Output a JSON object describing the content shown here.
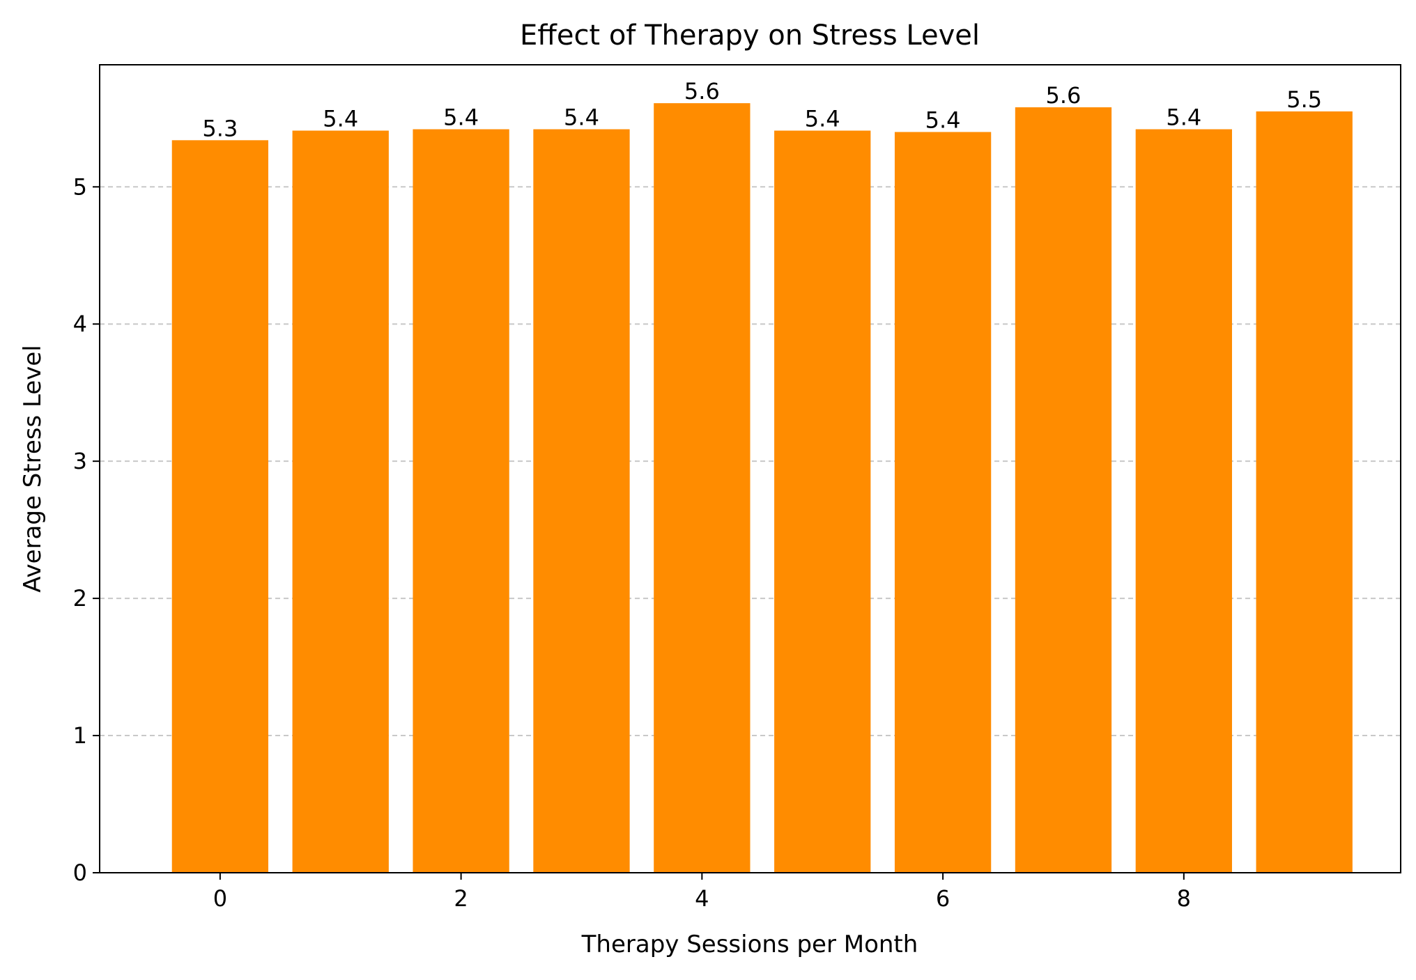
{
  "chart_data": {
    "type": "bar",
    "title": "Effect of Therapy on Stress Level",
    "xlabel": "Therapy Sessions per Month",
    "ylabel": "Average Stress Level",
    "x": [
      0,
      1,
      2,
      3,
      4,
      5,
      6,
      7,
      8,
      9
    ],
    "values": [
      5.34,
      5.41,
      5.42,
      5.42,
      5.61,
      5.41,
      5.4,
      5.58,
      5.42,
      5.55
    ],
    "data_labels": [
      "5.3",
      "5.4",
      "5.4",
      "5.4",
      "5.6",
      "5.4",
      "5.4",
      "5.6",
      "5.4",
      "5.5"
    ],
    "xlim": [
      -1.0,
      9.8
    ],
    "ylim": [
      0,
      5.89
    ],
    "x_ticks": [
      0,
      2,
      4,
      6,
      8
    ],
    "x_tick_labels": [
      "0",
      "2",
      "4",
      "6",
      "8"
    ],
    "y_ticks": [
      0,
      1,
      2,
      3,
      4,
      5
    ],
    "y_tick_labels": [
      "0",
      "1",
      "2",
      "3",
      "4",
      "5"
    ],
    "grid": {
      "axis": "y",
      "style": "dashed"
    },
    "bar_color": "#FF8C00",
    "grid_color": "#C8C8C8"
  }
}
